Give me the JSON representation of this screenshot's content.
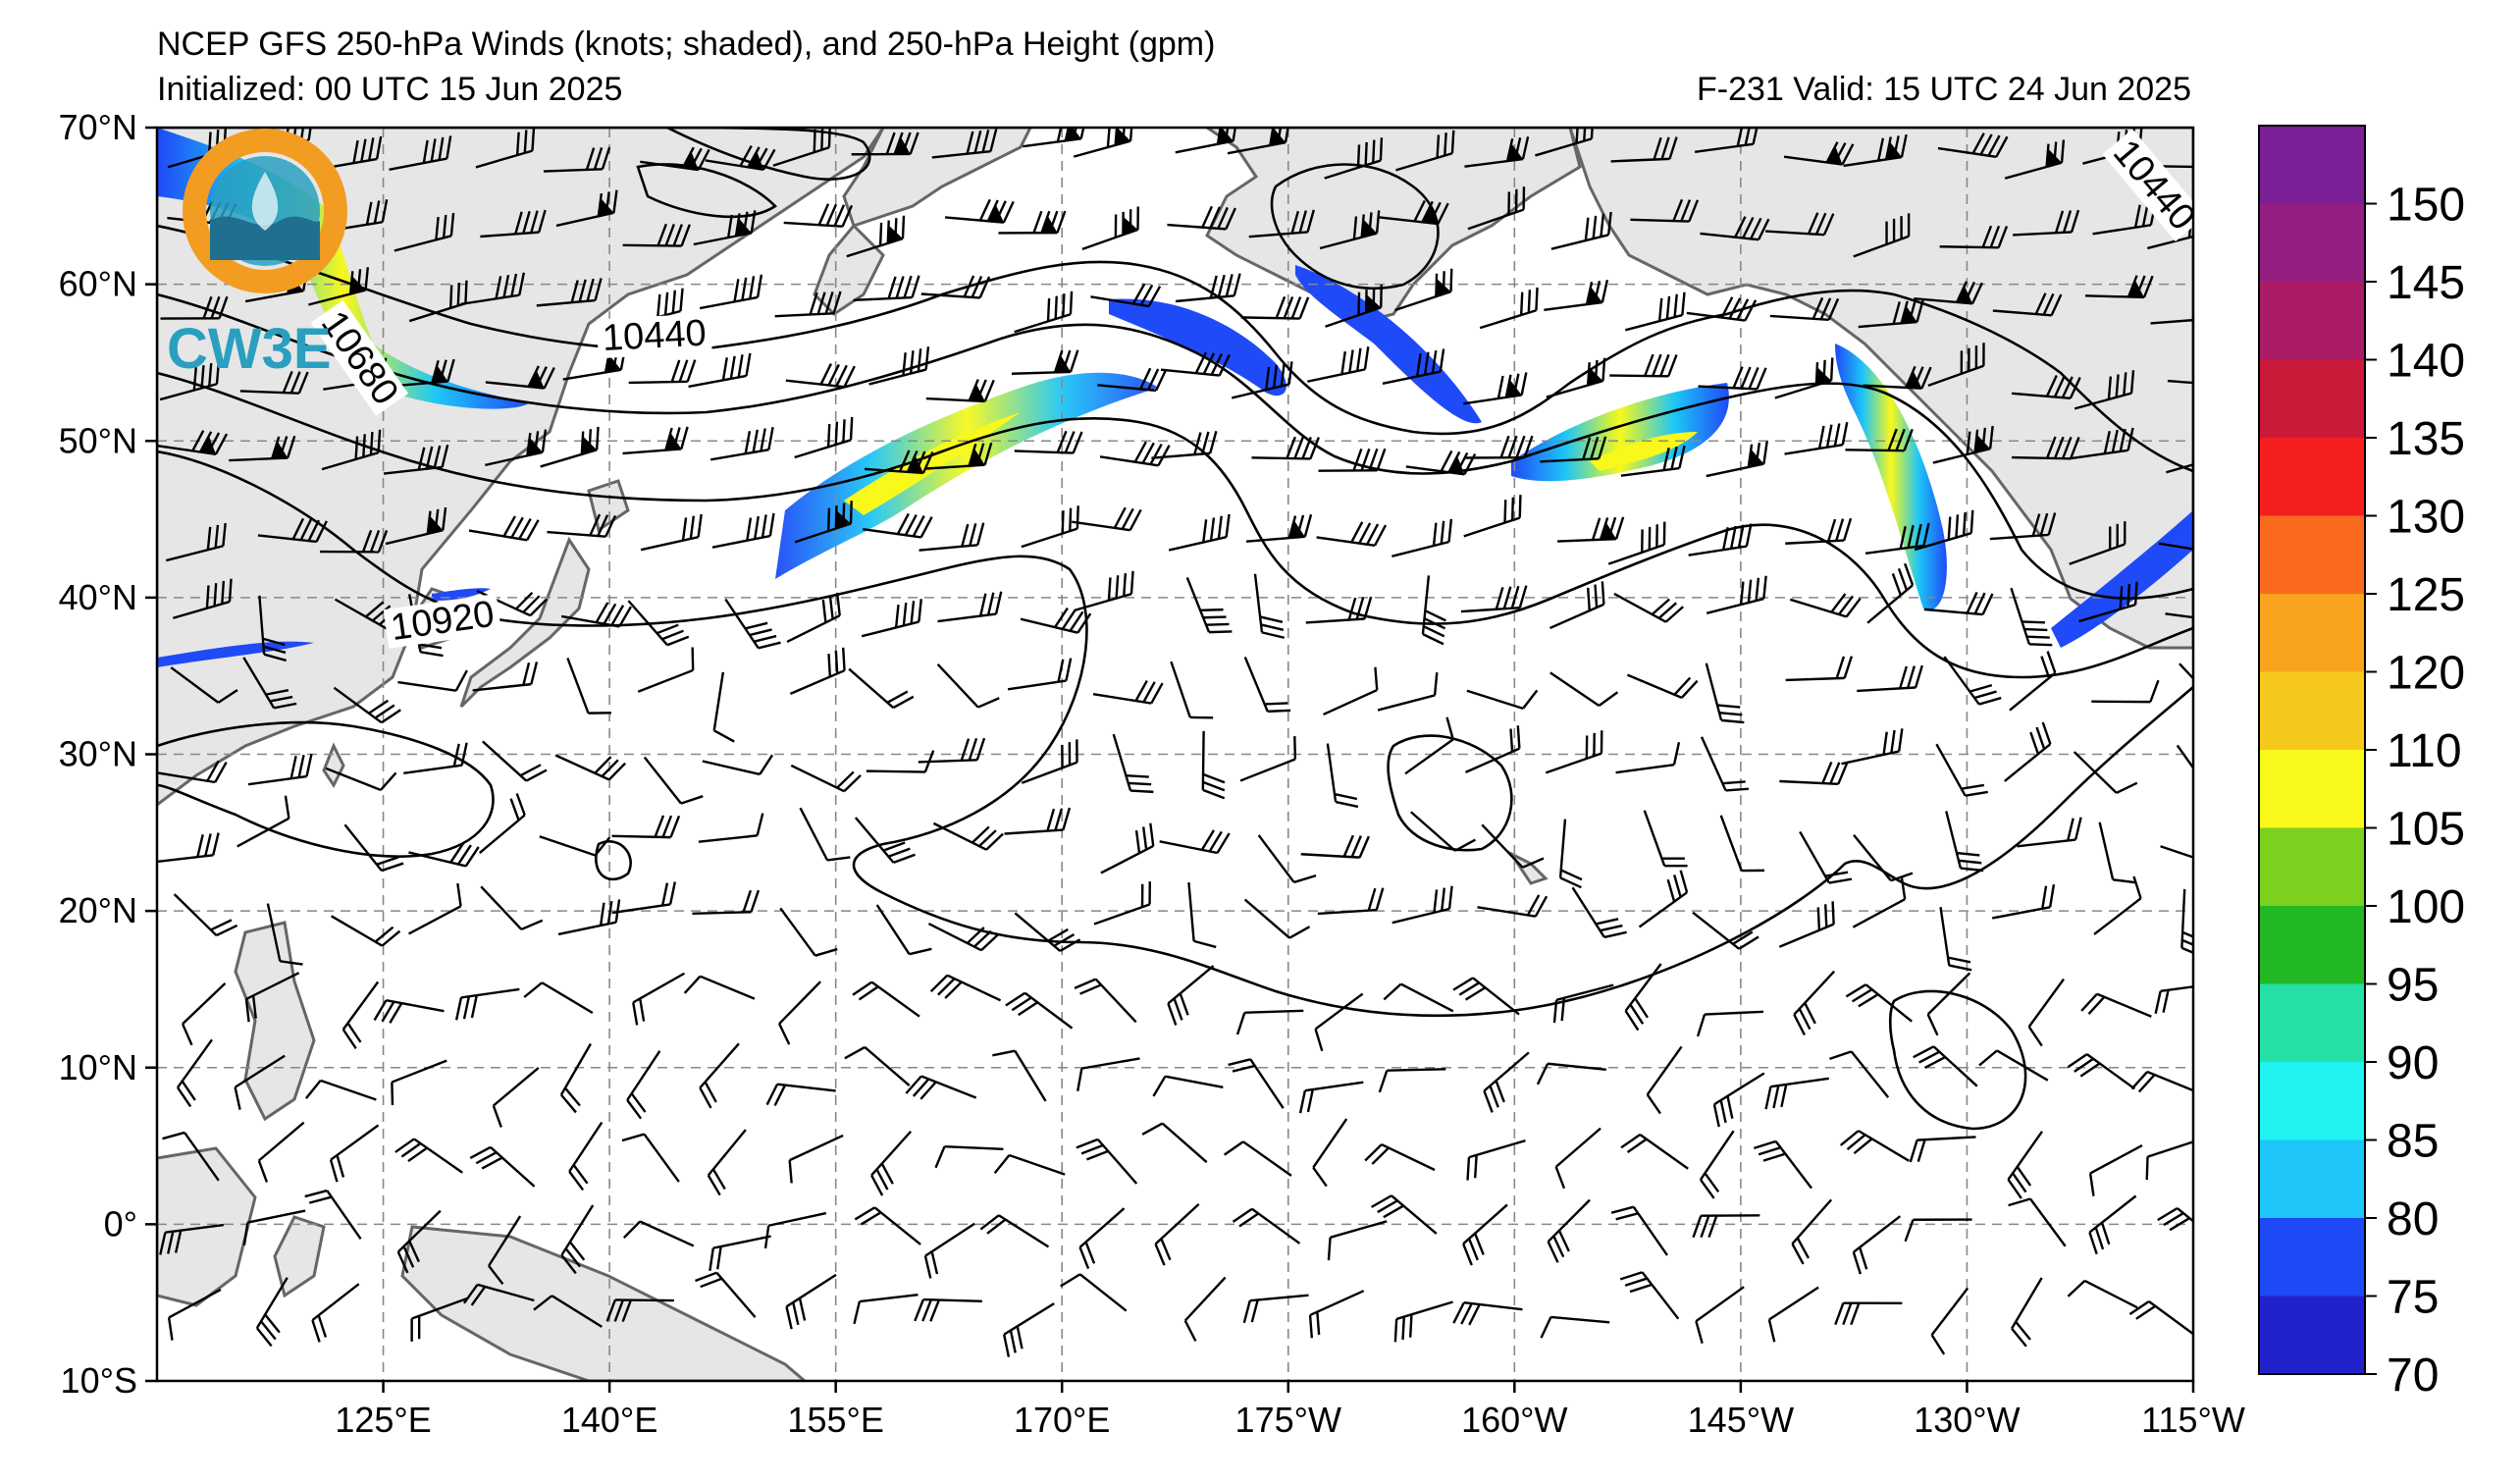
{
  "header": {
    "title": "NCEP GFS 250-hPa Winds (knots; shaded), and 250-hPa Height (gpm)",
    "initialized": "Initialized: 00 UTC 15 Jun 2025",
    "valid": "F-231  Valid: 15 UTC 24 Jun 2025"
  },
  "logo": {
    "text": "CW3E",
    "ring_color": "#f39c22",
    "wave_color": "#2a9fc0"
  },
  "map": {
    "lon_range": [
      110,
      245
    ],
    "lat_range": [
      -10,
      70
    ],
    "lon_ticks": [
      {
        "lon": 125,
        "label": "125°E"
      },
      {
        "lon": 140,
        "label": "140°E"
      },
      {
        "lon": 155,
        "label": "155°E"
      },
      {
        "lon": 170,
        "label": "170°E"
      },
      {
        "lon": 185,
        "label": "175°W"
      },
      {
        "lon": 200,
        "label": "160°W"
      },
      {
        "lon": 215,
        "label": "145°W"
      },
      {
        "lon": 230,
        "label": "130°W"
      },
      {
        "lon": 245,
        "label": "115°W"
      }
    ],
    "lat_ticks": [
      {
        "lat": 70,
        "label": "70°N"
      },
      {
        "lat": 60,
        "label": "60°N"
      },
      {
        "lat": 50,
        "label": "50°N"
      },
      {
        "lat": 40,
        "label": "40°N"
      },
      {
        "lat": 30,
        "label": "30°N"
      },
      {
        "lat": 20,
        "label": "20°N"
      },
      {
        "lat": 10,
        "label": "10°N"
      },
      {
        "lat": 0,
        "label": "0°"
      },
      {
        "lat": -10,
        "label": "10°S"
      }
    ],
    "contour_labels": [
      {
        "text": "10440",
        "lon": 143,
        "lat": 56.2,
        "angle": -3
      },
      {
        "text": "10920",
        "lon": 129,
        "lat": 38.0,
        "angle": -8
      },
      {
        "text": "10680",
        "lon": 123,
        "lat": 55.0,
        "angle": 55
      },
      {
        "text": "10440",
        "lon": 242,
        "lat": 66.0,
        "angle": 50
      }
    ],
    "colors": {
      "land": "#e6e6e6",
      "coast": "#666666",
      "contour": "#000000"
    }
  },
  "colorbar": {
    "labels": [
      "150",
      "145",
      "140",
      "135",
      "130",
      "125",
      "120",
      "110",
      "105",
      "100",
      "95",
      "90",
      "85",
      "80",
      "75",
      "70"
    ],
    "colors": [
      "#7b1f96",
      "#951e82",
      "#ab1b66",
      "#c91a3a",
      "#f41e1e",
      "#f96a1e",
      "#f9a31e",
      "#f7c81c",
      "#f8f81b",
      "#7bd11e",
      "#22b823",
      "#24dfa6",
      "#20f2f2",
      "#1ec6f7",
      "#1f4af7",
      "#2222cc"
    ]
  }
}
